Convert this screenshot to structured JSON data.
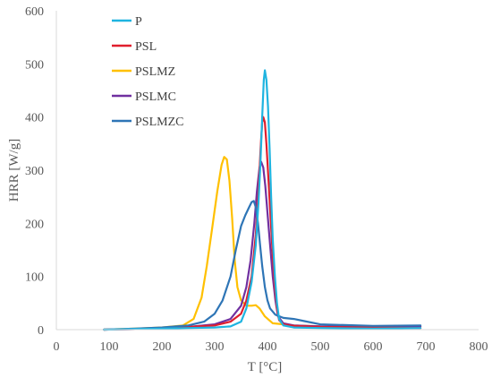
{
  "chart_data": {
    "type": "line",
    "xlabel": "T [°C]",
    "ylabel": "HRR [W/g]",
    "xlim": [
      0,
      800
    ],
    "ylim": [
      0,
      600
    ],
    "x_ticks": [
      0,
      100,
      200,
      300,
      400,
      500,
      600,
      700,
      800
    ],
    "y_ticks": [
      0,
      100,
      200,
      300,
      400,
      500,
      600
    ],
    "grid": false,
    "legend_position": "top-center",
    "series": [
      {
        "name": "P",
        "color": "#1fb4e0",
        "points": [
          [
            90,
            0
          ],
          [
            150,
            1
          ],
          [
            200,
            2
          ],
          [
            250,
            3
          ],
          [
            300,
            4
          ],
          [
            330,
            6
          ],
          [
            350,
            15
          ],
          [
            360,
            40
          ],
          [
            370,
            90
          ],
          [
            378,
            160
          ],
          [
            383,
            240
          ],
          [
            387,
            320
          ],
          [
            390,
            400
          ],
          [
            393,
            470
          ],
          [
            395,
            488
          ],
          [
            398,
            470
          ],
          [
            401,
            420
          ],
          [
            404,
            340
          ],
          [
            407,
            250
          ],
          [
            410,
            170
          ],
          [
            414,
            100
          ],
          [
            418,
            50
          ],
          [
            422,
            20
          ],
          [
            430,
            8
          ],
          [
            450,
            4
          ],
          [
            500,
            3
          ],
          [
            600,
            2
          ],
          [
            690,
            3
          ]
        ]
      },
      {
        "name": "PSL",
        "color": "#e01e2d",
        "points": [
          [
            90,
            0
          ],
          [
            150,
            1
          ],
          [
            200,
            3
          ],
          [
            250,
            5
          ],
          [
            300,
            8
          ],
          [
            330,
            15
          ],
          [
            350,
            30
          ],
          [
            360,
            55
          ],
          [
            370,
            100
          ],
          [
            378,
            180
          ],
          [
            383,
            260
          ],
          [
            387,
            340
          ],
          [
            390,
            390
          ],
          [
            392,
            400
          ],
          [
            395,
            390
          ],
          [
            398,
            350
          ],
          [
            402,
            280
          ],
          [
            406,
            210
          ],
          [
            410,
            140
          ],
          [
            414,
            80
          ],
          [
            418,
            40
          ],
          [
            422,
            18
          ],
          [
            430,
            10
          ],
          [
            450,
            7
          ],
          [
            500,
            5
          ],
          [
            600,
            4
          ],
          [
            690,
            3
          ]
        ]
      },
      {
        "name": "PSLMZ",
        "color": "#ffc000",
        "points": [
          [
            90,
            0
          ],
          [
            150,
            2
          ],
          [
            200,
            4
          ],
          [
            240,
            8
          ],
          [
            260,
            20
          ],
          [
            275,
            60
          ],
          [
            285,
            120
          ],
          [
            295,
            190
          ],
          [
            305,
            260
          ],
          [
            313,
            310
          ],
          [
            318,
            325
          ],
          [
            323,
            320
          ],
          [
            328,
            280
          ],
          [
            333,
            210
          ],
          [
            338,
            130
          ],
          [
            343,
            80
          ],
          [
            350,
            55
          ],
          [
            360,
            45
          ],
          [
            370,
            45
          ],
          [
            378,
            46
          ],
          [
            385,
            40
          ],
          [
            395,
            25
          ],
          [
            410,
            12
          ],
          [
            450,
            8
          ],
          [
            500,
            6
          ],
          [
            600,
            5
          ],
          [
            690,
            6
          ]
        ]
      },
      {
        "name": "PSLMC",
        "color": "#7030a0",
        "points": [
          [
            90,
            0
          ],
          [
            150,
            1
          ],
          [
            200,
            3
          ],
          [
            250,
            5
          ],
          [
            300,
            10
          ],
          [
            330,
            20
          ],
          [
            350,
            45
          ],
          [
            360,
            80
          ],
          [
            368,
            130
          ],
          [
            375,
            200
          ],
          [
            380,
            260
          ],
          [
            385,
            305
          ],
          [
            388,
            316
          ],
          [
            392,
            305
          ],
          [
            396,
            270
          ],
          [
            400,
            220
          ],
          [
            405,
            160
          ],
          [
            410,
            100
          ],
          [
            415,
            55
          ],
          [
            420,
            25
          ],
          [
            430,
            12
          ],
          [
            450,
            8
          ],
          [
            500,
            6
          ],
          [
            600,
            5
          ],
          [
            690,
            6
          ]
        ]
      },
      {
        "name": "PSLMZC",
        "color": "#2e75b6",
        "points": [
          [
            90,
            0
          ],
          [
            150,
            2
          ],
          [
            200,
            4
          ],
          [
            250,
            8
          ],
          [
            280,
            15
          ],
          [
            300,
            30
          ],
          [
            315,
            55
          ],
          [
            330,
            100
          ],
          [
            340,
            150
          ],
          [
            350,
            195
          ],
          [
            358,
            215
          ],
          [
            365,
            230
          ],
          [
            370,
            240
          ],
          [
            374,
            242
          ],
          [
            378,
            230
          ],
          [
            382,
            200
          ],
          [
            386,
            160
          ],
          [
            390,
            120
          ],
          [
            395,
            80
          ],
          [
            400,
            55
          ],
          [
            405,
            40
          ],
          [
            415,
            28
          ],
          [
            430,
            22
          ],
          [
            450,
            20
          ],
          [
            470,
            16
          ],
          [
            500,
            10
          ],
          [
            600,
            7
          ],
          [
            690,
            8
          ]
        ]
      }
    ]
  }
}
